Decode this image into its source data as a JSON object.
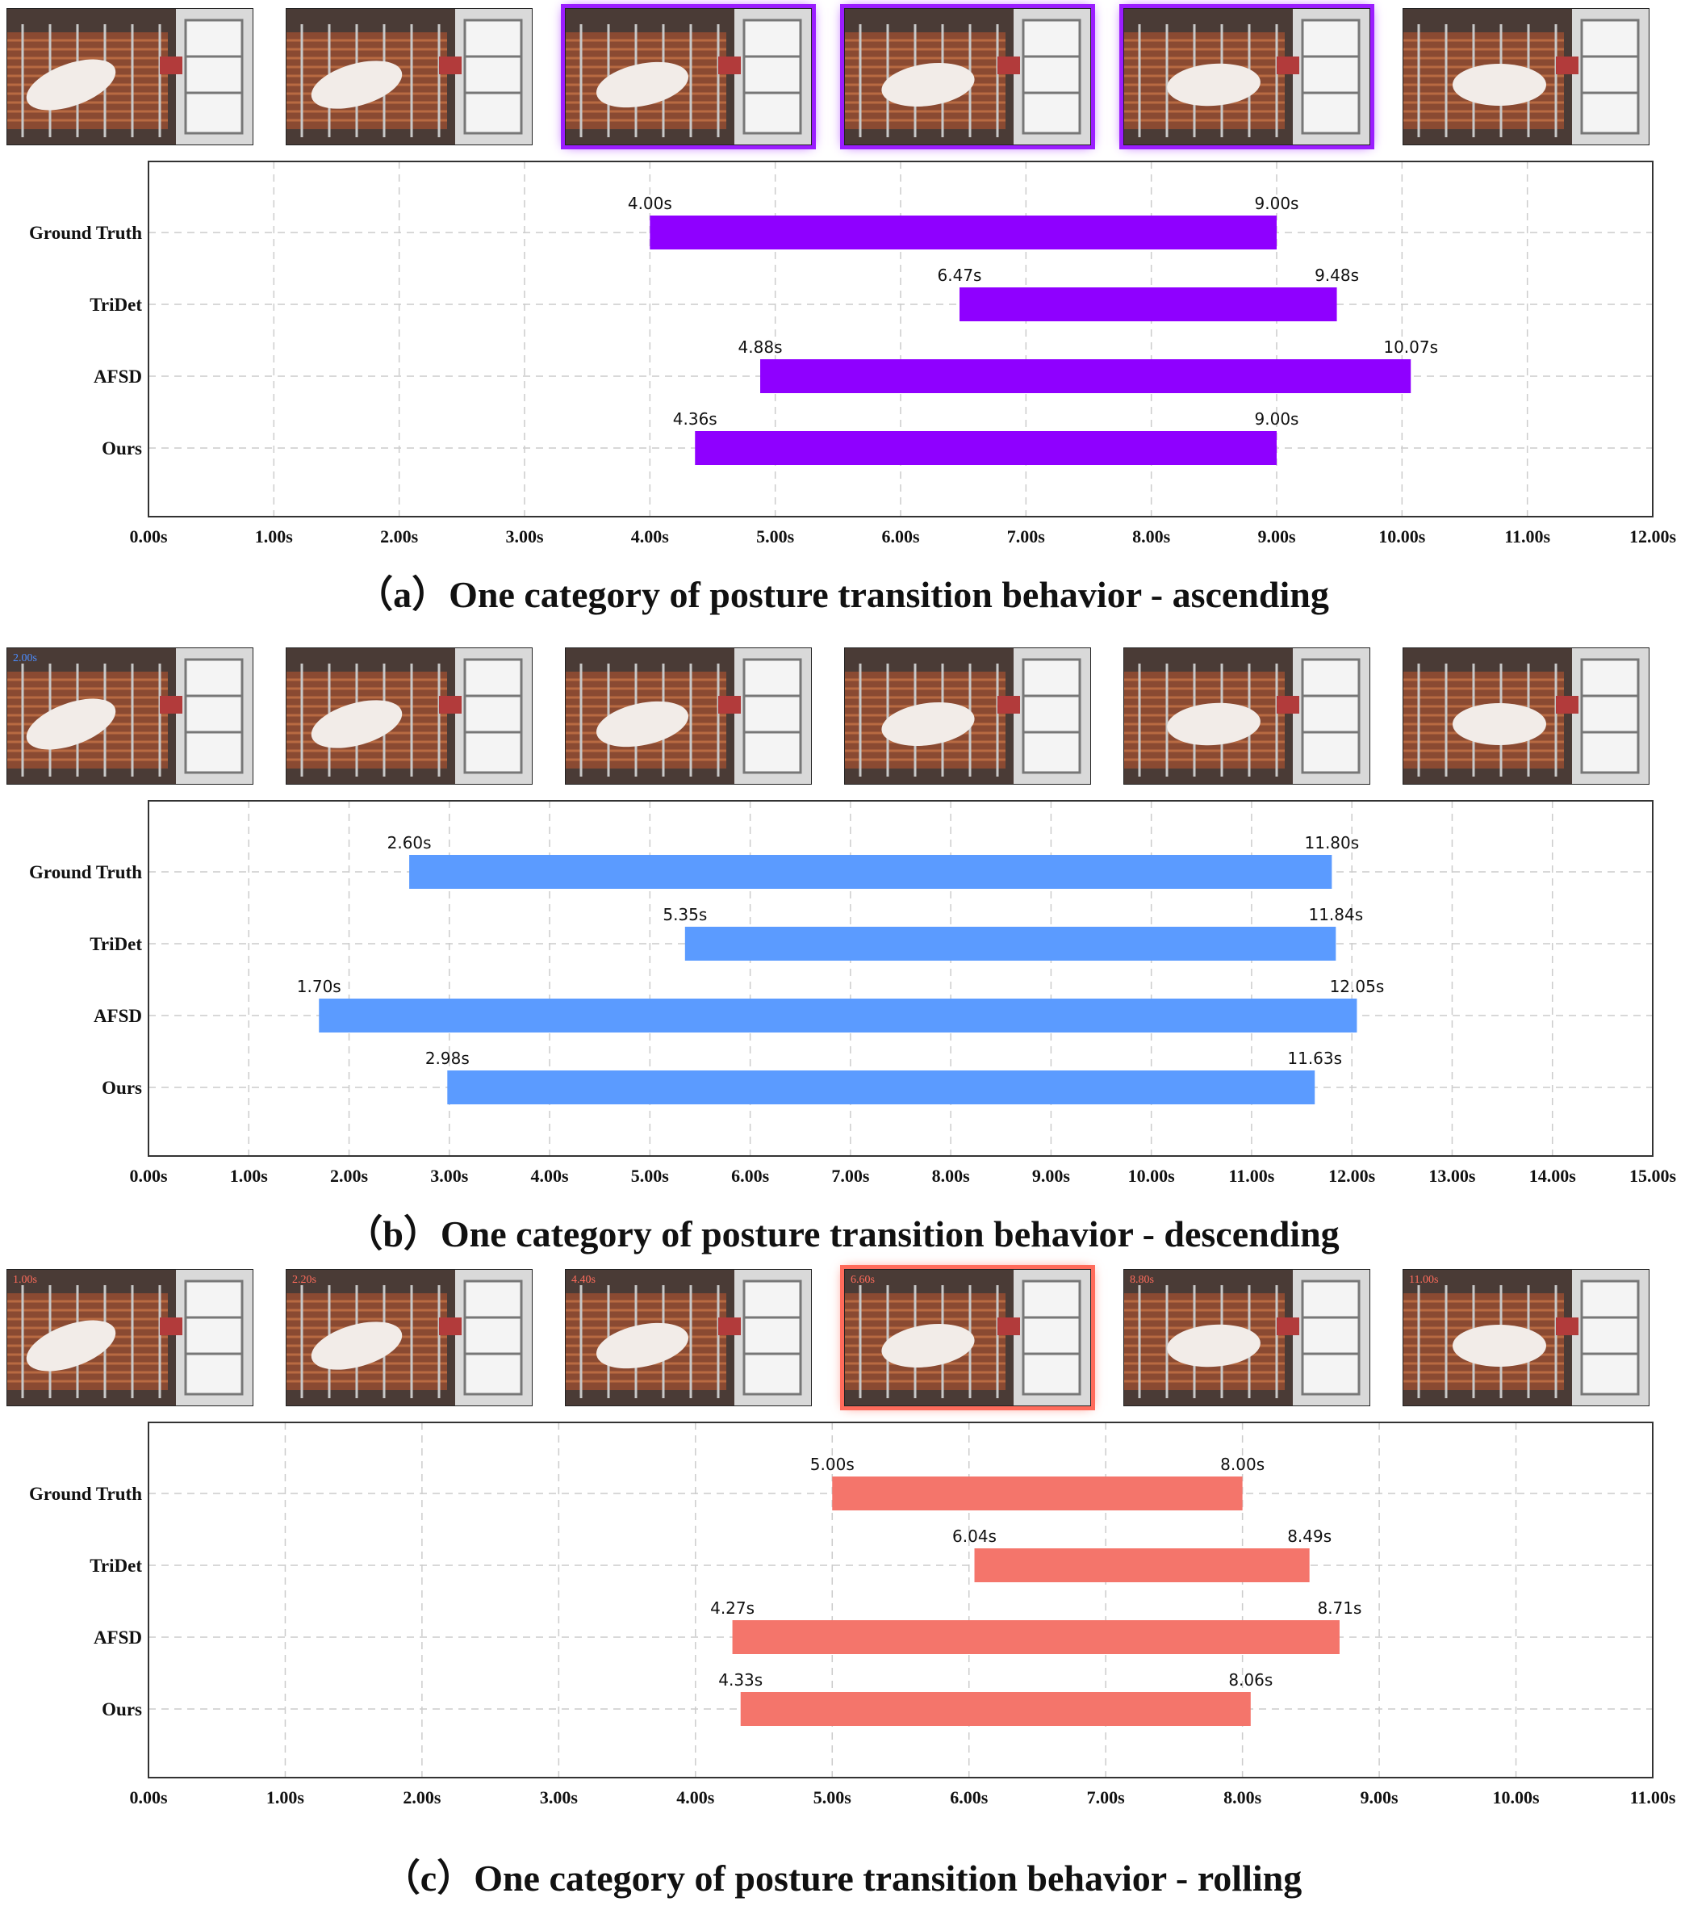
{
  "panels": [
    {
      "caption": "（a）One category of posture transition behavior - ascending",
      "frame_labels": [
        "",
        "",
        "",
        "",
        "",
        ""
      ],
      "highlight_frames": [
        2,
        3,
        4
      ],
      "highlight_color": "#9b1dff",
      "bar_color": "#8f00ff",
      "chart_data": {
        "type": "bar",
        "orientation": "horizontal-range",
        "categories": [
          "Ground Truth",
          "TriDet",
          "AFSD",
          "Ours"
        ],
        "start": [
          4.0,
          6.47,
          4.88,
          4.36
        ],
        "end": [
          9.0,
          9.48,
          10.07,
          9.0
        ],
        "start_labels": [
          "4.00s",
          "6.47s",
          "4.88s",
          "4.36s"
        ],
        "end_labels": [
          "9.00s",
          "9.48s",
          "10.07s",
          "9.00s"
        ],
        "xlim": [
          0,
          12
        ],
        "xticks": [
          "0.00s",
          "1.00s",
          "2.00s",
          "3.00s",
          "4.00s",
          "5.00s",
          "6.00s",
          "7.00s",
          "8.00s",
          "9.00s",
          "10.00s",
          "11.00s",
          "12.00s"
        ],
        "grid": true
      }
    },
    {
      "caption": "（b）One category of posture transition behavior - descending",
      "frame_labels": [
        "2.00s",
        "",
        "",
        "",
        "",
        ""
      ],
      "highlight_frames": [],
      "highlight_color": "#4a8cff",
      "bar_color": "#5b9bff",
      "chart_data": {
        "type": "bar",
        "orientation": "horizontal-range",
        "categories": [
          "Ground Truth",
          "TriDet",
          "AFSD",
          "Ours"
        ],
        "start": [
          2.6,
          5.35,
          1.7,
          2.98
        ],
        "end": [
          11.8,
          11.84,
          12.05,
          11.63
        ],
        "start_labels": [
          "2.60s",
          "5.35s",
          "1.70s",
          "2.98s"
        ],
        "end_labels": [
          "11.80s",
          "11.84s",
          "12.05s",
          "11.63s"
        ],
        "xlim": [
          0,
          15
        ],
        "xticks": [
          "0.00s",
          "1.00s",
          "2.00s",
          "3.00s",
          "4.00s",
          "5.00s",
          "6.00s",
          "7.00s",
          "8.00s",
          "9.00s",
          "10.00s",
          "11.00s",
          "12.00s",
          "13.00s",
          "14.00s",
          "15.00s"
        ],
        "grid": true
      }
    },
    {
      "caption": "（c）One category of posture transition behavior - rolling",
      "frame_labels": [
        "1.00s",
        "2.20s",
        "4.40s",
        "6.60s",
        "8.80s",
        "11.00s"
      ],
      "highlight_frames": [
        3
      ],
      "highlight_color": "#ff6b5b",
      "bar_color": "#f4756b",
      "chart_data": {
        "type": "bar",
        "orientation": "horizontal-range",
        "categories": [
          "Ground Truth",
          "TriDet",
          "AFSD",
          "Ours"
        ],
        "start": [
          5.0,
          6.04,
          4.27,
          4.33
        ],
        "end": [
          8.0,
          8.49,
          8.71,
          8.06
        ],
        "start_labels": [
          "5.00s",
          "6.04s",
          "4.27s",
          "4.33s"
        ],
        "end_labels": [
          "8.00s",
          "8.49s",
          "8.71s",
          "8.06s"
        ],
        "xlim": [
          0,
          11
        ],
        "xticks": [
          "0.00s",
          "1.00s",
          "2.00s",
          "3.00s",
          "4.00s",
          "5.00s",
          "6.00s",
          "7.00s",
          "8.00s",
          "9.00s",
          "10.00s",
          "11.00s"
        ],
        "grid": true
      }
    }
  ]
}
